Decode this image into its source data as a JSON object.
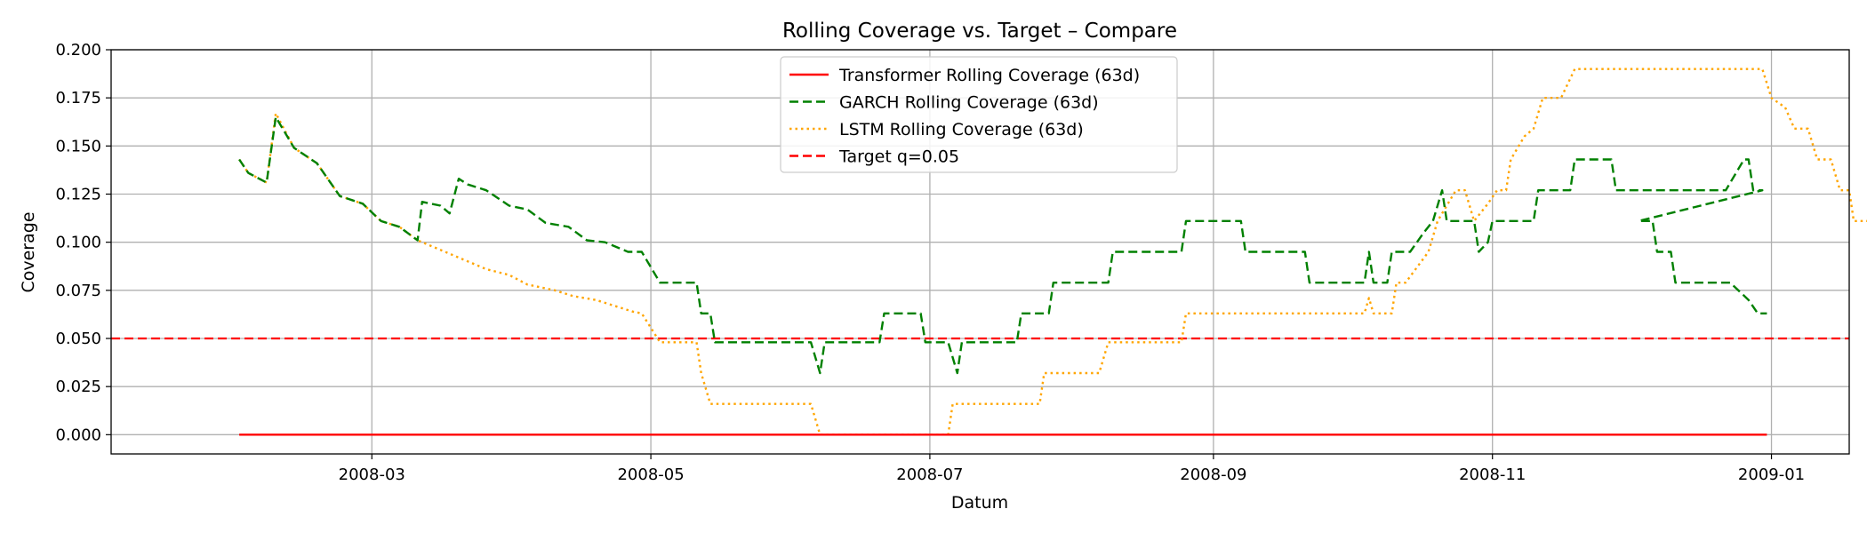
{
  "chart_data": {
    "type": "line",
    "title": "Rolling Coverage vs. Target – Compare",
    "xlabel": "Datum",
    "ylabel": "Coverage",
    "x_type": "date",
    "xlim": [
      "2008-01-04",
      "2009-01-18"
    ],
    "ylim": [
      -0.01,
      0.2
    ],
    "xticks": [
      "2008-03",
      "2008-05",
      "2008-07",
      "2008-09",
      "2008-11",
      "2009-01"
    ],
    "yticks": [
      "0.000",
      "0.025",
      "0.050",
      "0.075",
      "0.100",
      "0.125",
      "0.150",
      "0.175",
      "0.200"
    ],
    "grid": true,
    "legend_position": "upper center",
    "series": [
      {
        "name": "Transformer Rolling Coverage (63d)",
        "color": "#ff0000",
        "style": "solid",
        "points": [
          [
            "2008-02-01",
            0.0
          ],
          [
            "2008-12-31",
            0.0
          ]
        ]
      },
      {
        "name": "GARCH Rolling Coverage (63d)",
        "color": "#008000",
        "style": "dashed",
        "points": [
          [
            "2008-02-01",
            0.143
          ],
          [
            "2008-02-03",
            0.136
          ],
          [
            "2008-02-07",
            0.131
          ],
          [
            "2008-02-09",
            0.165
          ],
          [
            "2008-02-13",
            0.149
          ],
          [
            "2008-02-18",
            0.141
          ],
          [
            "2008-02-23",
            0.124
          ],
          [
            "2008-02-28",
            0.12
          ],
          [
            "2008-03-03",
            0.111
          ],
          [
            "2008-03-07",
            0.108
          ],
          [
            "2008-03-11",
            0.101
          ],
          [
            "2008-03-12",
            0.121
          ],
          [
            "2008-03-16",
            0.119
          ],
          [
            "2008-03-18",
            0.115
          ],
          [
            "2008-03-20",
            0.133
          ],
          [
            "2008-03-22",
            0.13
          ],
          [
            "2008-03-26",
            0.127
          ],
          [
            "2008-03-31",
            0.119
          ],
          [
            "2008-04-04",
            0.117
          ],
          [
            "2008-04-08",
            0.11
          ],
          [
            "2008-04-13",
            0.108
          ],
          [
            "2008-04-17",
            0.101
          ],
          [
            "2008-04-21",
            0.1
          ],
          [
            "2008-04-26",
            0.095
          ],
          [
            "2008-04-29",
            0.095
          ],
          [
            "2008-05-03",
            0.079
          ],
          [
            "2008-05-11",
            0.079
          ],
          [
            "2008-05-12",
            0.063
          ],
          [
            "2008-05-14",
            0.063
          ],
          [
            "2008-05-15",
            0.048
          ],
          [
            "2008-06-05",
            0.048
          ],
          [
            "2008-06-07",
            0.032
          ],
          [
            "2008-06-08",
            0.048
          ],
          [
            "2008-06-20",
            0.048
          ],
          [
            "2008-06-21",
            0.063
          ],
          [
            "2008-06-29",
            0.063
          ],
          [
            "2008-06-30",
            0.048
          ],
          [
            "2008-07-05",
            0.048
          ],
          [
            "2008-07-07",
            0.032
          ],
          [
            "2008-07-08",
            0.048
          ],
          [
            "2008-07-20",
            0.048
          ],
          [
            "2008-07-21",
            0.063
          ],
          [
            "2008-07-27",
            0.063
          ],
          [
            "2008-07-28",
            0.079
          ],
          [
            "2008-08-09",
            0.079
          ],
          [
            "2008-08-10",
            0.095
          ],
          [
            "2008-08-25",
            0.095
          ],
          [
            "2008-08-26",
            0.111
          ],
          [
            "2008-09-07",
            0.111
          ],
          [
            "2008-09-08",
            0.095
          ],
          [
            "2008-09-21",
            0.095
          ],
          [
            "2008-09-22",
            0.079
          ],
          [
            "2008-10-04",
            0.079
          ],
          [
            "2008-10-05",
            0.095
          ],
          [
            "2008-10-06",
            0.079
          ],
          [
            "2008-10-09",
            0.079
          ],
          [
            "2008-10-10",
            0.095
          ],
          [
            "2008-10-14",
            0.095
          ],
          [
            "2008-10-17",
            0.105
          ],
          [
            "2008-10-19",
            0.111
          ],
          [
            "2008-10-21",
            0.127
          ],
          [
            "2008-10-22",
            0.111
          ],
          [
            "2008-10-28",
            0.111
          ],
          [
            "2008-10-29",
            0.095
          ],
          [
            "2008-10-31",
            0.1
          ],
          [
            "2008-11-01",
            0.111
          ],
          [
            "2008-11-10",
            0.111
          ],
          [
            "2008-11-11",
            0.127
          ],
          [
            "2008-11-18",
            0.127
          ],
          [
            "2008-11-19",
            0.143
          ],
          [
            "2008-11-27",
            0.143
          ],
          [
            "2008-11-28",
            0.127
          ],
          [
            "2008-12-22",
            0.127
          ],
          [
            "2008-12-26",
            0.143
          ],
          [
            "2008-12-27",
            0.143
          ],
          [
            "2008-12-28",
            0.127
          ],
          [
            "2008-12-30",
            0.127
          ],
          [
            "2008-12-03",
            0.111
          ],
          [
            "2008-12-06",
            0.111
          ],
          [
            "2008-12-07",
            0.095
          ],
          [
            "2008-12-10",
            0.095
          ],
          [
            "2008-12-11",
            0.079
          ],
          [
            "2008-12-23",
            0.079
          ],
          [
            "2008-12-27",
            0.07
          ],
          [
            "2008-12-29",
            0.063
          ],
          [
            "2008-12-31",
            0.063
          ]
        ]
      },
      {
        "name": "LSTM Rolling Coverage (63d)",
        "color": "#ffa500",
        "style": "dotted",
        "points": [
          [
            "2008-02-01",
            0.143
          ],
          [
            "2008-02-03",
            0.136
          ],
          [
            "2008-02-07",
            0.131
          ],
          [
            "2008-02-09",
            0.167
          ],
          [
            "2008-02-13",
            0.149
          ],
          [
            "2008-02-18",
            0.141
          ],
          [
            "2008-02-23",
            0.124
          ],
          [
            "2008-02-28",
            0.12
          ],
          [
            "2008-03-03",
            0.111
          ],
          [
            "2008-03-07",
            0.108
          ],
          [
            "2008-03-11",
            0.101
          ],
          [
            "2008-03-16",
            0.096
          ],
          [
            "2008-03-22",
            0.09
          ],
          [
            "2008-03-26",
            0.086
          ],
          [
            "2008-03-31",
            0.083
          ],
          [
            "2008-04-04",
            0.078
          ],
          [
            "2008-04-10",
            0.075
          ],
          [
            "2008-04-14",
            0.072
          ],
          [
            "2008-04-19",
            0.07
          ],
          [
            "2008-04-23",
            0.067
          ],
          [
            "2008-04-27",
            0.064
          ],
          [
            "2008-04-29",
            0.063
          ],
          [
            "2008-05-03",
            0.048
          ],
          [
            "2008-05-11",
            0.048
          ],
          [
            "2008-05-12",
            0.032
          ],
          [
            "2008-05-14",
            0.016
          ],
          [
            "2008-06-05",
            0.016
          ],
          [
            "2008-06-07",
            0.0
          ],
          [
            "2008-07-05",
            0.0
          ],
          [
            "2008-07-06",
            0.016
          ],
          [
            "2008-07-25",
            0.016
          ],
          [
            "2008-07-26",
            0.032
          ],
          [
            "2008-08-07",
            0.032
          ],
          [
            "2008-08-09",
            0.048
          ],
          [
            "2008-08-25",
            0.048
          ],
          [
            "2008-08-26",
            0.063
          ],
          [
            "2008-10-04",
            0.063
          ],
          [
            "2008-10-05",
            0.071
          ],
          [
            "2008-10-06",
            0.063
          ],
          [
            "2008-10-10",
            0.063
          ],
          [
            "2008-10-11",
            0.079
          ],
          [
            "2008-10-13",
            0.079
          ],
          [
            "2008-10-18",
            0.095
          ],
          [
            "2008-10-20",
            0.111
          ],
          [
            "2008-10-24",
            0.127
          ],
          [
            "2008-10-26",
            0.127
          ],
          [
            "2008-10-28",
            0.111
          ],
          [
            "2008-10-31",
            0.12
          ],
          [
            "2008-11-02",
            0.127
          ],
          [
            "2008-11-04",
            0.127
          ],
          [
            "2008-11-05",
            0.143
          ],
          [
            "2008-11-08",
            0.155
          ],
          [
            "2008-11-10",
            0.159
          ],
          [
            "2008-11-12",
            0.175
          ],
          [
            "2008-11-16",
            0.175
          ],
          [
            "2008-11-19",
            0.19
          ],
          [
            "2008-12-30",
            0.19
          ],
          [
            "2009-01-01",
            0.175
          ],
          [
            "2009-01-04",
            0.17
          ],
          [
            "2009-01-06",
            0.159
          ],
          [
            "2009-01-09",
            0.159
          ],
          [
            "2009-01-11",
            0.143
          ],
          [
            "2009-01-14",
            0.143
          ],
          [
            "2009-01-16",
            0.127
          ],
          [
            "2009-01-18",
            0.127
          ],
          [
            "2009-01-19",
            0.111
          ],
          [
            "2009-01-26",
            0.111
          ],
          [
            "2009-01-30",
            0.095
          ],
          [
            "2009-01-31",
            0.095
          ]
        ]
      }
    ],
    "reference_lines": [
      {
        "name": "Target q=0.05",
        "y": 0.05,
        "color": "#ff0000",
        "style": "dashed"
      }
    ]
  }
}
